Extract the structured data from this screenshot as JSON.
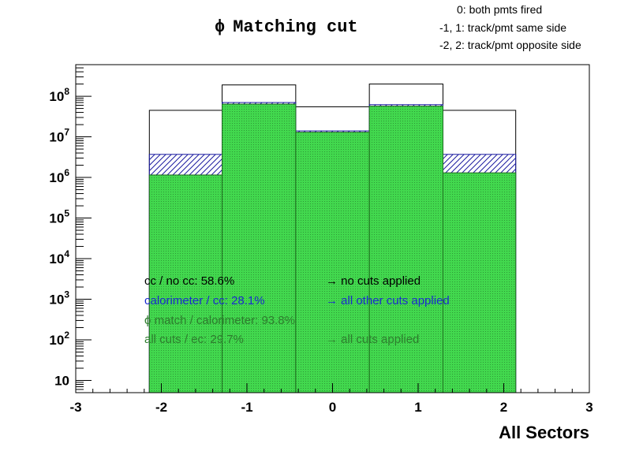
{
  "chart_data": {
    "type": "bar",
    "title": "Matching cut",
    "title_symbol": "ϕ",
    "xlabel": "All Sectors",
    "ylabel": "",
    "x_range": [
      -3,
      3
    ],
    "y_scale": "log",
    "y_range": [
      5,
      600000000
    ],
    "x_ticks": [
      -3,
      -2,
      -1,
      0,
      1,
      2,
      3
    ],
    "x_tick_labels": [
      "-3",
      "-2",
      "-1",
      "0",
      "1",
      "2",
      "3"
    ],
    "y_ticks": [
      {
        "value": 10,
        "base": "10",
        "exp": ""
      },
      {
        "value": 100,
        "base": "10",
        "exp": "2"
      },
      {
        "value": 1000,
        "base": "10",
        "exp": "3"
      },
      {
        "value": 10000,
        "base": "10",
        "exp": "4"
      },
      {
        "value": 100000,
        "base": "10",
        "exp": "5"
      },
      {
        "value": 1000000,
        "base": "10",
        "exp": "6"
      },
      {
        "value": 10000000,
        "base": "10",
        "exp": "7"
      },
      {
        "value": 100000000,
        "base": "10",
        "exp": "8"
      }
    ],
    "bin_edges": [
      -2.14,
      -1.29,
      -0.43,
      0.43,
      1.29,
      2.14
    ],
    "series": [
      {
        "key": "no_cuts",
        "values": [
          45000000,
          190000000,
          55000000,
          200000000,
          45000000
        ],
        "color": "#000000",
        "fill": "none"
      },
      {
        "key": "other_cuts",
        "values": [
          3700000,
          70000000,
          14000000,
          62000000,
          3700000
        ],
        "color": "#1a1aa0",
        "fill": "hatch"
      },
      {
        "key": "all_cuts",
        "values": [
          1150000,
          64000000,
          13000000,
          57000000,
          1300000
        ],
        "color": "#2e8b2e",
        "fill": "#42d84e"
      }
    ],
    "grid": false,
    "legend_position": "top-right"
  },
  "legend": {
    "lines": [
      "0: both pmts fired",
      "-1, 1: track/pmt same side",
      "-2, 2: track/pmt opposite side"
    ]
  },
  "annotations": [
    {
      "text": "cc / no cc:  58.6%",
      "color": "#000000"
    },
    {
      "text": "→ no cuts applied",
      "color": "#000000"
    },
    {
      "text": "calorimeter / cc:  28.1%",
      "color": "#1a2ad0"
    },
    {
      "text": "→ all other cuts applied",
      "color": "#1a2ad0"
    },
    {
      "text": "ϕ match / calorimeter: 93.8%",
      "color": "#2e7d2e"
    },
    {
      "text": "all cuts / ec:  29.7%",
      "color": "#2e7d2e"
    },
    {
      "text": "→ all cuts applied",
      "color": "#2e7d2e"
    }
  ]
}
